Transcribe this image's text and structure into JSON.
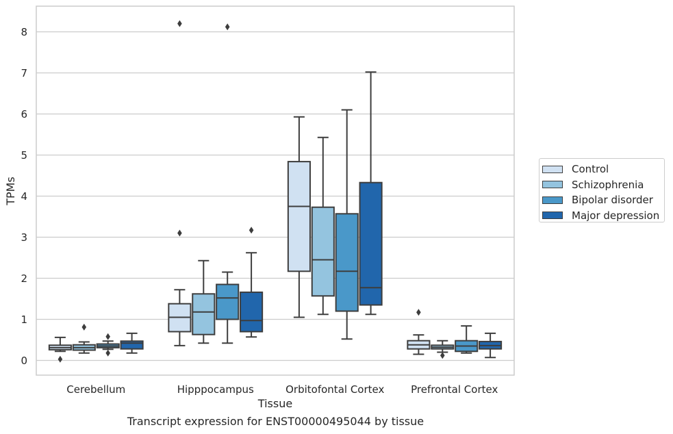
{
  "chart_data": {
    "type": "boxplot",
    "title": "",
    "xlabel": "Tissue",
    "ylabel": "TPMs",
    "caption": "Transcript expression for ENST00000495044 by tissue",
    "ylim": [
      -0.35,
      8.6
    ],
    "yticks": [
      0,
      1,
      2,
      3,
      4,
      5,
      6,
      7,
      8
    ],
    "grid": "horizontal",
    "legend_position": "right",
    "categories": [
      "Cerebellum",
      "Hipppocampus",
      "Orbitofontal Cortex",
      "Prefrontal Cortex"
    ],
    "series": [
      {
        "name": "Control",
        "color": "#d0e1f2",
        "boxes": [
          {
            "whislo": 0.22,
            "q1": 0.26,
            "med": 0.31,
            "q3": 0.37,
            "whishi": 0.56,
            "fliers": [
              0.03
            ]
          },
          {
            "whislo": 0.36,
            "q1": 0.7,
            "med": 1.05,
            "q3": 1.38,
            "whishi": 1.72,
            "fliers": [
              3.1,
              8.2
            ]
          },
          {
            "whislo": 1.05,
            "q1": 2.17,
            "med": 3.75,
            "q3": 4.84,
            "whishi": 5.93,
            "fliers": []
          },
          {
            "whislo": 0.15,
            "q1": 0.28,
            "med": 0.38,
            "q3": 0.48,
            "whishi": 0.62,
            "fliers": [
              1.17
            ]
          }
        ]
      },
      {
        "name": "Schizophrenia",
        "color": "#94c4df",
        "boxes": [
          {
            "whislo": 0.18,
            "q1": 0.25,
            "med": 0.31,
            "q3": 0.38,
            "whishi": 0.45,
            "fliers": [
              0.81
            ]
          },
          {
            "whislo": 0.42,
            "q1": 0.63,
            "med": 1.18,
            "q3": 1.62,
            "whishi": 2.43,
            "fliers": []
          },
          {
            "whislo": 1.12,
            "q1": 1.57,
            "med": 2.45,
            "q3": 3.73,
            "whishi": 5.43,
            "fliers": []
          },
          {
            "whislo": 0.2,
            "q1": 0.28,
            "med": 0.32,
            "q3": 0.37,
            "whishi": 0.48,
            "fliers": [
              0.12
            ]
          }
        ]
      },
      {
        "name": "Bipolar disorder",
        "color": "#4a98c9",
        "boxes": [
          {
            "whislo": 0.27,
            "q1": 0.31,
            "med": 0.35,
            "q3": 0.4,
            "whishi": 0.47,
            "fliers": [
              0.18,
              0.58
            ]
          },
          {
            "whislo": 0.42,
            "q1": 1.0,
            "med": 1.52,
            "q3": 1.85,
            "whishi": 2.15,
            "fliers": [
              8.12
            ]
          },
          {
            "whislo": 0.52,
            "q1": 1.2,
            "med": 2.17,
            "q3": 3.57,
            "whishi": 6.1,
            "fliers": []
          },
          {
            "whislo": 0.18,
            "q1": 0.22,
            "med": 0.35,
            "q3": 0.48,
            "whishi": 0.84,
            "fliers": []
          }
        ]
      },
      {
        "name": "Major depression",
        "color": "#2166ac",
        "boxes": [
          {
            "whislo": 0.18,
            "q1": 0.28,
            "med": 0.42,
            "q3": 0.47,
            "whishi": 0.66,
            "fliers": []
          },
          {
            "whislo": 0.57,
            "q1": 0.7,
            "med": 0.97,
            "q3": 1.66,
            "whishi": 2.62,
            "fliers": [
              3.17
            ]
          },
          {
            "whislo": 1.12,
            "q1": 1.35,
            "med": 1.77,
            "q3": 4.33,
            "whishi": 7.02,
            "fliers": []
          },
          {
            "whislo": 0.07,
            "q1": 0.28,
            "med": 0.36,
            "q3": 0.46,
            "whishi": 0.66,
            "fliers": []
          }
        ]
      }
    ]
  }
}
